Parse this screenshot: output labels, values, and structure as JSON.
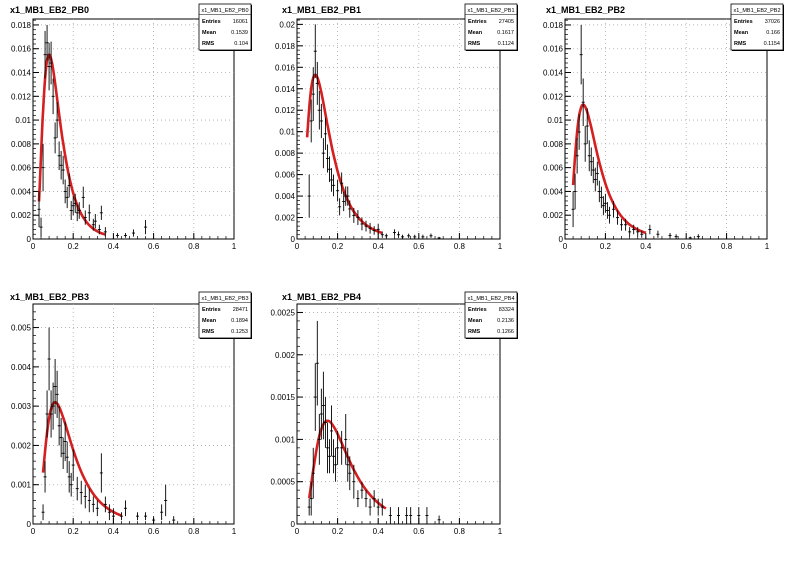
{
  "chart_data": [
    {
      "type": "scatter",
      "title": "x1_MB1_EB2_PB0",
      "stats": {
        "name": "x1_MB1_EB2_PB0",
        "rows": [
          [
            "Entries",
            "16061"
          ],
          [
            "Mean",
            "0.1539"
          ],
          [
            "RMS",
            "0.104"
          ]
        ]
      },
      "xlim": [
        0,
        1
      ],
      "ylim": [
        0,
        0.0185
      ],
      "xticks": [
        0,
        0.2,
        0.4,
        0.6,
        0.8,
        1
      ],
      "xtick_labels": [
        "0",
        "0.2",
        "0.4",
        "0.6",
        "0.8",
        "1"
      ],
      "yticks": [
        0,
        0.002,
        0.004,
        0.006,
        0.008,
        0.01,
        0.012,
        0.014,
        0.016,
        0.018
      ],
      "ytick_labels": [
        "0",
        "0.002",
        "0.004",
        "0.006",
        "0.008",
        "0.01",
        "0.012",
        "0.014",
        "0.016",
        "0.018"
      ],
      "grid": true,
      "points": [
        [
          0.03,
          0.0025,
          0.0015
        ],
        [
          0.04,
          0.001,
          0.0008
        ],
        [
          0.05,
          0.006,
          0.002
        ],
        [
          0.06,
          0.0155,
          0.002
        ],
        [
          0.07,
          0.0165,
          0.0015
        ],
        [
          0.08,
          0.0145,
          0.002
        ],
        [
          0.09,
          0.0148,
          0.0018
        ],
        [
          0.1,
          0.012,
          0.0015
        ],
        [
          0.11,
          0.0085,
          0.0013
        ],
        [
          0.12,
          0.01,
          0.0015
        ],
        [
          0.13,
          0.007,
          0.0012
        ],
        [
          0.14,
          0.0062,
          0.0012
        ],
        [
          0.15,
          0.0058,
          0.0012
        ],
        [
          0.16,
          0.004,
          0.001
        ],
        [
          0.17,
          0.0035,
          0.0009
        ],
        [
          0.18,
          0.0045,
          0.001
        ],
        [
          0.19,
          0.0024,
          0.0008
        ],
        [
          0.2,
          0.0028,
          0.0008
        ],
        [
          0.21,
          0.003,
          0.0008
        ],
        [
          0.22,
          0.0022,
          0.0007
        ],
        [
          0.23,
          0.0024,
          0.0007
        ],
        [
          0.25,
          0.0035,
          0.0009
        ],
        [
          0.26,
          0.0018,
          0.0006
        ],
        [
          0.28,
          0.0022,
          0.0007
        ],
        [
          0.3,
          0.0012,
          0.0005
        ],
        [
          0.31,
          0.0015,
          0.0006
        ],
        [
          0.33,
          0.0008,
          0.0004
        ],
        [
          0.34,
          0.0022,
          0.0006
        ],
        [
          0.36,
          0.0006,
          0.0004
        ],
        [
          0.42,
          0.0003,
          0.0002
        ],
        [
          0.46,
          0.0003,
          0.0002
        ],
        [
          0.5,
          0.0005,
          0.0003
        ],
        [
          0.56,
          0.001,
          0.0006
        ]
      ],
      "fit": {
        "mode": 0.08,
        "peak": 0.0155,
        "spread": 0.55,
        "range": [
          0.03,
          0.36
        ],
        "color": "#d42020"
      }
    },
    {
      "type": "scatter",
      "title": "x1_MB1_EB2_PB1",
      "stats": {
        "name": "x1_MB1_EB2_PB1",
        "rows": [
          [
            "Entries",
            "27405"
          ],
          [
            "Mean",
            "0.1617"
          ],
          [
            "RMS",
            "0.1124"
          ]
        ]
      },
      "xlim": [
        0,
        1
      ],
      "ylim": [
        0,
        0.0205
      ],
      "xticks": [
        0,
        0.2,
        0.4,
        0.6,
        0.8,
        1
      ],
      "xtick_labels": [
        "0",
        "0.2",
        "0.4",
        "0.6",
        "0.8",
        "1"
      ],
      "yticks": [
        0,
        0.002,
        0.004,
        0.006,
        0.008,
        0.01,
        0.012,
        0.014,
        0.016,
        0.018,
        0.02
      ],
      "ytick_labels": [
        "0",
        "0.002",
        "0.004",
        "0.006",
        "0.008",
        "0.01",
        "0.012",
        "0.014",
        "0.016",
        "0.018",
        "0.02"
      ],
      "grid": true,
      "points": [
        [
          0.06,
          0.004,
          0.002
        ],
        [
          0.07,
          0.011,
          0.002
        ],
        [
          0.08,
          0.0135,
          0.0025
        ],
        [
          0.09,
          0.0175,
          0.0025
        ],
        [
          0.1,
          0.0145,
          0.002
        ],
        [
          0.11,
          0.012,
          0.0018
        ],
        [
          0.12,
          0.011,
          0.0016
        ],
        [
          0.13,
          0.008,
          0.0014
        ],
        [
          0.14,
          0.0098,
          0.0015
        ],
        [
          0.15,
          0.0075,
          0.0013
        ],
        [
          0.16,
          0.0065,
          0.0012
        ],
        [
          0.17,
          0.0055,
          0.0011
        ],
        [
          0.18,
          0.005,
          0.001
        ],
        [
          0.2,
          0.0045,
          0.001
        ],
        [
          0.21,
          0.003,
          0.0008
        ],
        [
          0.22,
          0.0052,
          0.001
        ],
        [
          0.23,
          0.0035,
          0.0009
        ],
        [
          0.24,
          0.004,
          0.0009
        ],
        [
          0.25,
          0.004,
          0.0009
        ],
        [
          0.26,
          0.0028,
          0.0008
        ],
        [
          0.28,
          0.0022,
          0.0007
        ],
        [
          0.3,
          0.002,
          0.0007
        ],
        [
          0.32,
          0.0014,
          0.0006
        ],
        [
          0.34,
          0.0012,
          0.0005
        ],
        [
          0.36,
          0.001,
          0.0005
        ],
        [
          0.38,
          0.0008,
          0.0004
        ],
        [
          0.4,
          0.0009,
          0.0005
        ],
        [
          0.42,
          0.0004,
          0.0003
        ],
        [
          0.44,
          0.0003,
          0.0002
        ],
        [
          0.48,
          0.0006,
          0.0003
        ],
        [
          0.5,
          0.0004,
          0.0003
        ],
        [
          0.52,
          0.0002,
          0.0002
        ],
        [
          0.55,
          0.0003,
          0.0002
        ],
        [
          0.58,
          0.0002,
          0.0002
        ],
        [
          0.62,
          0.0002,
          0.0002
        ],
        [
          0.66,
          0.0003,
          0.0002
        ],
        [
          0.7,
          0.0001,
          0.0001
        ]
      ],
      "fit": {
        "mode": 0.09,
        "peak": 0.0153,
        "spread": 0.6,
        "range": [
          0.05,
          0.42
        ],
        "color": "#d42020"
      }
    },
    {
      "type": "scatter",
      "title": "x1_MB1_EB2_PB2",
      "stats": {
        "name": "x1_MB1_EB2_PB2",
        "rows": [
          [
            "Entries",
            "37026"
          ],
          [
            "Mean",
            "0.166"
          ],
          [
            "RMS",
            "0.1154"
          ]
        ]
      },
      "xlim": [
        0,
        1
      ],
      "ylim": [
        0,
        0.0185
      ],
      "xticks": [
        0,
        0.2,
        0.4,
        0.6,
        0.8,
        1
      ],
      "xtick_labels": [
        "0",
        "0.2",
        "0.4",
        "0.6",
        "0.8",
        "1"
      ],
      "yticks": [
        0,
        0.002,
        0.004,
        0.006,
        0.008,
        0.01,
        0.012,
        0.014,
        0.016,
        0.018
      ],
      "ytick_labels": [
        "0",
        "0.002",
        "0.004",
        "0.006",
        "0.008",
        "0.01",
        "0.012",
        "0.014",
        "0.016",
        "0.018"
      ],
      "grid": true,
      "points": [
        [
          0.04,
          0.0025,
          0.0015
        ],
        [
          0.05,
          0.004,
          0.0015
        ],
        [
          0.06,
          0.007,
          0.0015
        ],
        [
          0.07,
          0.009,
          0.0015
        ],
        [
          0.08,
          0.0155,
          0.0025
        ],
        [
          0.09,
          0.0115,
          0.002
        ],
        [
          0.1,
          0.008,
          0.0015
        ],
        [
          0.11,
          0.0095,
          0.0015
        ],
        [
          0.12,
          0.007,
          0.0013
        ],
        [
          0.13,
          0.0065,
          0.0012
        ],
        [
          0.14,
          0.0058,
          0.0011
        ],
        [
          0.15,
          0.005,
          0.001
        ],
        [
          0.16,
          0.0055,
          0.001
        ],
        [
          0.17,
          0.004,
          0.0009
        ],
        [
          0.18,
          0.0035,
          0.0009
        ],
        [
          0.19,
          0.0028,
          0.0008
        ],
        [
          0.2,
          0.003,
          0.0008
        ],
        [
          0.21,
          0.0024,
          0.0007
        ],
        [
          0.22,
          0.002,
          0.0007
        ],
        [
          0.24,
          0.0025,
          0.0007
        ],
        [
          0.26,
          0.0018,
          0.0006
        ],
        [
          0.28,
          0.0012,
          0.0005
        ],
        [
          0.3,
          0.0012,
          0.0005
        ],
        [
          0.32,
          0.0006,
          0.0004
        ],
        [
          0.34,
          0.0008,
          0.0004
        ],
        [
          0.36,
          0.0006,
          0.0004
        ],
        [
          0.38,
          0.0004,
          0.0003
        ],
        [
          0.42,
          0.0008,
          0.0004
        ],
        [
          0.46,
          0.0004,
          0.0003
        ],
        [
          0.52,
          0.0003,
          0.0002
        ],
        [
          0.55,
          0.0002,
          0.0002
        ],
        [
          0.62,
          0.0001,
          0.0001
        ],
        [
          0.66,
          0.0002,
          0.0002
        ]
      ],
      "fit": {
        "mode": 0.09,
        "peak": 0.0113,
        "spread": 0.6,
        "range": [
          0.04,
          0.4
        ],
        "color": "#d42020"
      }
    },
    {
      "type": "scatter",
      "title": "x1_MB1_EB2_PB3",
      "stats": {
        "name": "x1_MB1_EB2_PB3",
        "rows": [
          [
            "Entries",
            "28471"
          ],
          [
            "Mean",
            "0.1894"
          ],
          [
            "RMS",
            "0.1253"
          ]
        ]
      },
      "xlim": [
        0,
        1
      ],
      "ylim": [
        0,
        0.0056
      ],
      "xticks": [
        0,
        0.2,
        0.4,
        0.6,
        0.8,
        1
      ],
      "xtick_labels": [
        "0",
        "0.2",
        "0.4",
        "0.6",
        "0.8",
        "1"
      ],
      "yticks": [
        0,
        0.001,
        0.002,
        0.003,
        0.004,
        0.005
      ],
      "ytick_labels": [
        "0",
        "0.001",
        "0.002",
        "0.003",
        "0.004",
        "0.005"
      ],
      "grid": true,
      "points": [
        [
          0.05,
          0.0003,
          0.0002
        ],
        [
          0.06,
          0.0012,
          0.0004
        ],
        [
          0.07,
          0.0028,
          0.0006
        ],
        [
          0.08,
          0.0042,
          0.0008
        ],
        [
          0.09,
          0.0028,
          0.0006
        ],
        [
          0.1,
          0.003,
          0.0006
        ],
        [
          0.11,
          0.0035,
          0.0007
        ],
        [
          0.12,
          0.0033,
          0.0006
        ],
        [
          0.13,
          0.0025,
          0.0005
        ],
        [
          0.14,
          0.0022,
          0.0005
        ],
        [
          0.15,
          0.0018,
          0.0004
        ],
        [
          0.16,
          0.0021,
          0.0005
        ],
        [
          0.17,
          0.0017,
          0.0004
        ],
        [
          0.18,
          0.0012,
          0.0004
        ],
        [
          0.19,
          0.001,
          0.0003
        ],
        [
          0.2,
          0.0015,
          0.0004
        ],
        [
          0.22,
          0.0009,
          0.0003
        ],
        [
          0.24,
          0.0008,
          0.0003
        ],
        [
          0.26,
          0.0007,
          0.0003
        ],
        [
          0.28,
          0.0006,
          0.0003
        ],
        [
          0.3,
          0.0005,
          0.0002
        ],
        [
          0.32,
          0.0004,
          0.0002
        ],
        [
          0.34,
          0.0013,
          0.0005
        ],
        [
          0.36,
          0.0005,
          0.0002
        ],
        [
          0.38,
          0.0003,
          0.0002
        ],
        [
          0.4,
          0.0002,
          0.0002
        ],
        [
          0.44,
          0.0002,
          0.0001
        ],
        [
          0.46,
          0.0004,
          0.0002
        ],
        [
          0.52,
          0.0002,
          0.0001
        ],
        [
          0.56,
          0.0002,
          0.0001
        ],
        [
          0.6,
          0.0001,
          0.0001
        ],
        [
          0.64,
          0.0003,
          0.0002
        ],
        [
          0.66,
          0.0006,
          0.0004
        ],
        [
          0.7,
          0.0001,
          0.0001
        ]
      ],
      "fit": {
        "mode": 0.11,
        "peak": 0.0031,
        "spread": 0.6,
        "range": [
          0.05,
          0.44
        ],
        "color": "#d42020"
      }
    },
    {
      "type": "scatter",
      "title": "x1_MB1_EB2_PB4",
      "stats": {
        "name": "x1_MB1_EB2_PB4",
        "rows": [
          [
            "Entries",
            "83324"
          ],
          [
            "Mean",
            "0.2136"
          ],
          [
            "RMS",
            "0.1266"
          ]
        ]
      },
      "xlim": [
        0,
        1
      ],
      "ylim": [
        0,
        0.0026
      ],
      "xticks": [
        0,
        0.2,
        0.4,
        0.6,
        0.8,
        1
      ],
      "xtick_labels": [
        "0",
        "0.2",
        "0.4",
        "0.6",
        "0.8",
        "1"
      ],
      "yticks": [
        0,
        0.0005,
        0.001,
        0.0015,
        0.002,
        0.0025
      ],
      "ytick_labels": [
        "0",
        "0.0005",
        "0.001",
        "0.0015",
        "0.002",
        "0.0025"
      ],
      "grid": true,
      "points": [
        [
          0.06,
          0.0002,
          0.0001
        ],
        [
          0.07,
          0.0003,
          0.0002
        ],
        [
          0.08,
          0.0006,
          0.0003
        ],
        [
          0.09,
          0.0015,
          0.0004
        ],
        [
          0.1,
          0.0019,
          0.0005
        ],
        [
          0.11,
          0.001,
          0.0003
        ],
        [
          0.12,
          0.0013,
          0.0003
        ],
        [
          0.13,
          0.0014,
          0.0004
        ],
        [
          0.14,
          0.0012,
          0.0003
        ],
        [
          0.15,
          0.0009,
          0.0003
        ],
        [
          0.16,
          0.0008,
          0.0002
        ],
        [
          0.17,
          0.0011,
          0.0003
        ],
        [
          0.18,
          0.0008,
          0.0002
        ],
        [
          0.19,
          0.0007,
          0.0002
        ],
        [
          0.2,
          0.0009,
          0.0002
        ],
        [
          0.22,
          0.0009,
          0.0002
        ],
        [
          0.24,
          0.001,
          0.0003
        ],
        [
          0.25,
          0.0007,
          0.0002
        ],
        [
          0.26,
          0.0006,
          0.0002
        ],
        [
          0.28,
          0.0005,
          0.0002
        ],
        [
          0.3,
          0.0003,
          0.0001
        ],
        [
          0.32,
          0.0004,
          0.0001
        ],
        [
          0.34,
          0.0003,
          0.0001
        ],
        [
          0.36,
          0.0002,
          0.0001
        ],
        [
          0.38,
          0.0003,
          0.0001
        ],
        [
          0.4,
          0.0002,
          0.0001
        ],
        [
          0.42,
          0.0002,
          0.0001
        ],
        [
          0.46,
          0.0001,
          0.0001
        ],
        [
          0.5,
          0.0001,
          0.0001
        ],
        [
          0.54,
          0.0001,
          0.0001
        ],
        [
          0.56,
          0.0001,
          0.0001
        ],
        [
          0.6,
          0.0001,
          0.0001
        ],
        [
          0.64,
          0.0001,
          0.0001
        ],
        [
          0.7,
          5e-05,
          5e-05
        ]
      ],
      "fit": {
        "mode": 0.15,
        "peak": 0.00122,
        "spread": 0.55,
        "range": [
          0.06,
          0.44
        ],
        "color": "#d42020"
      }
    }
  ]
}
